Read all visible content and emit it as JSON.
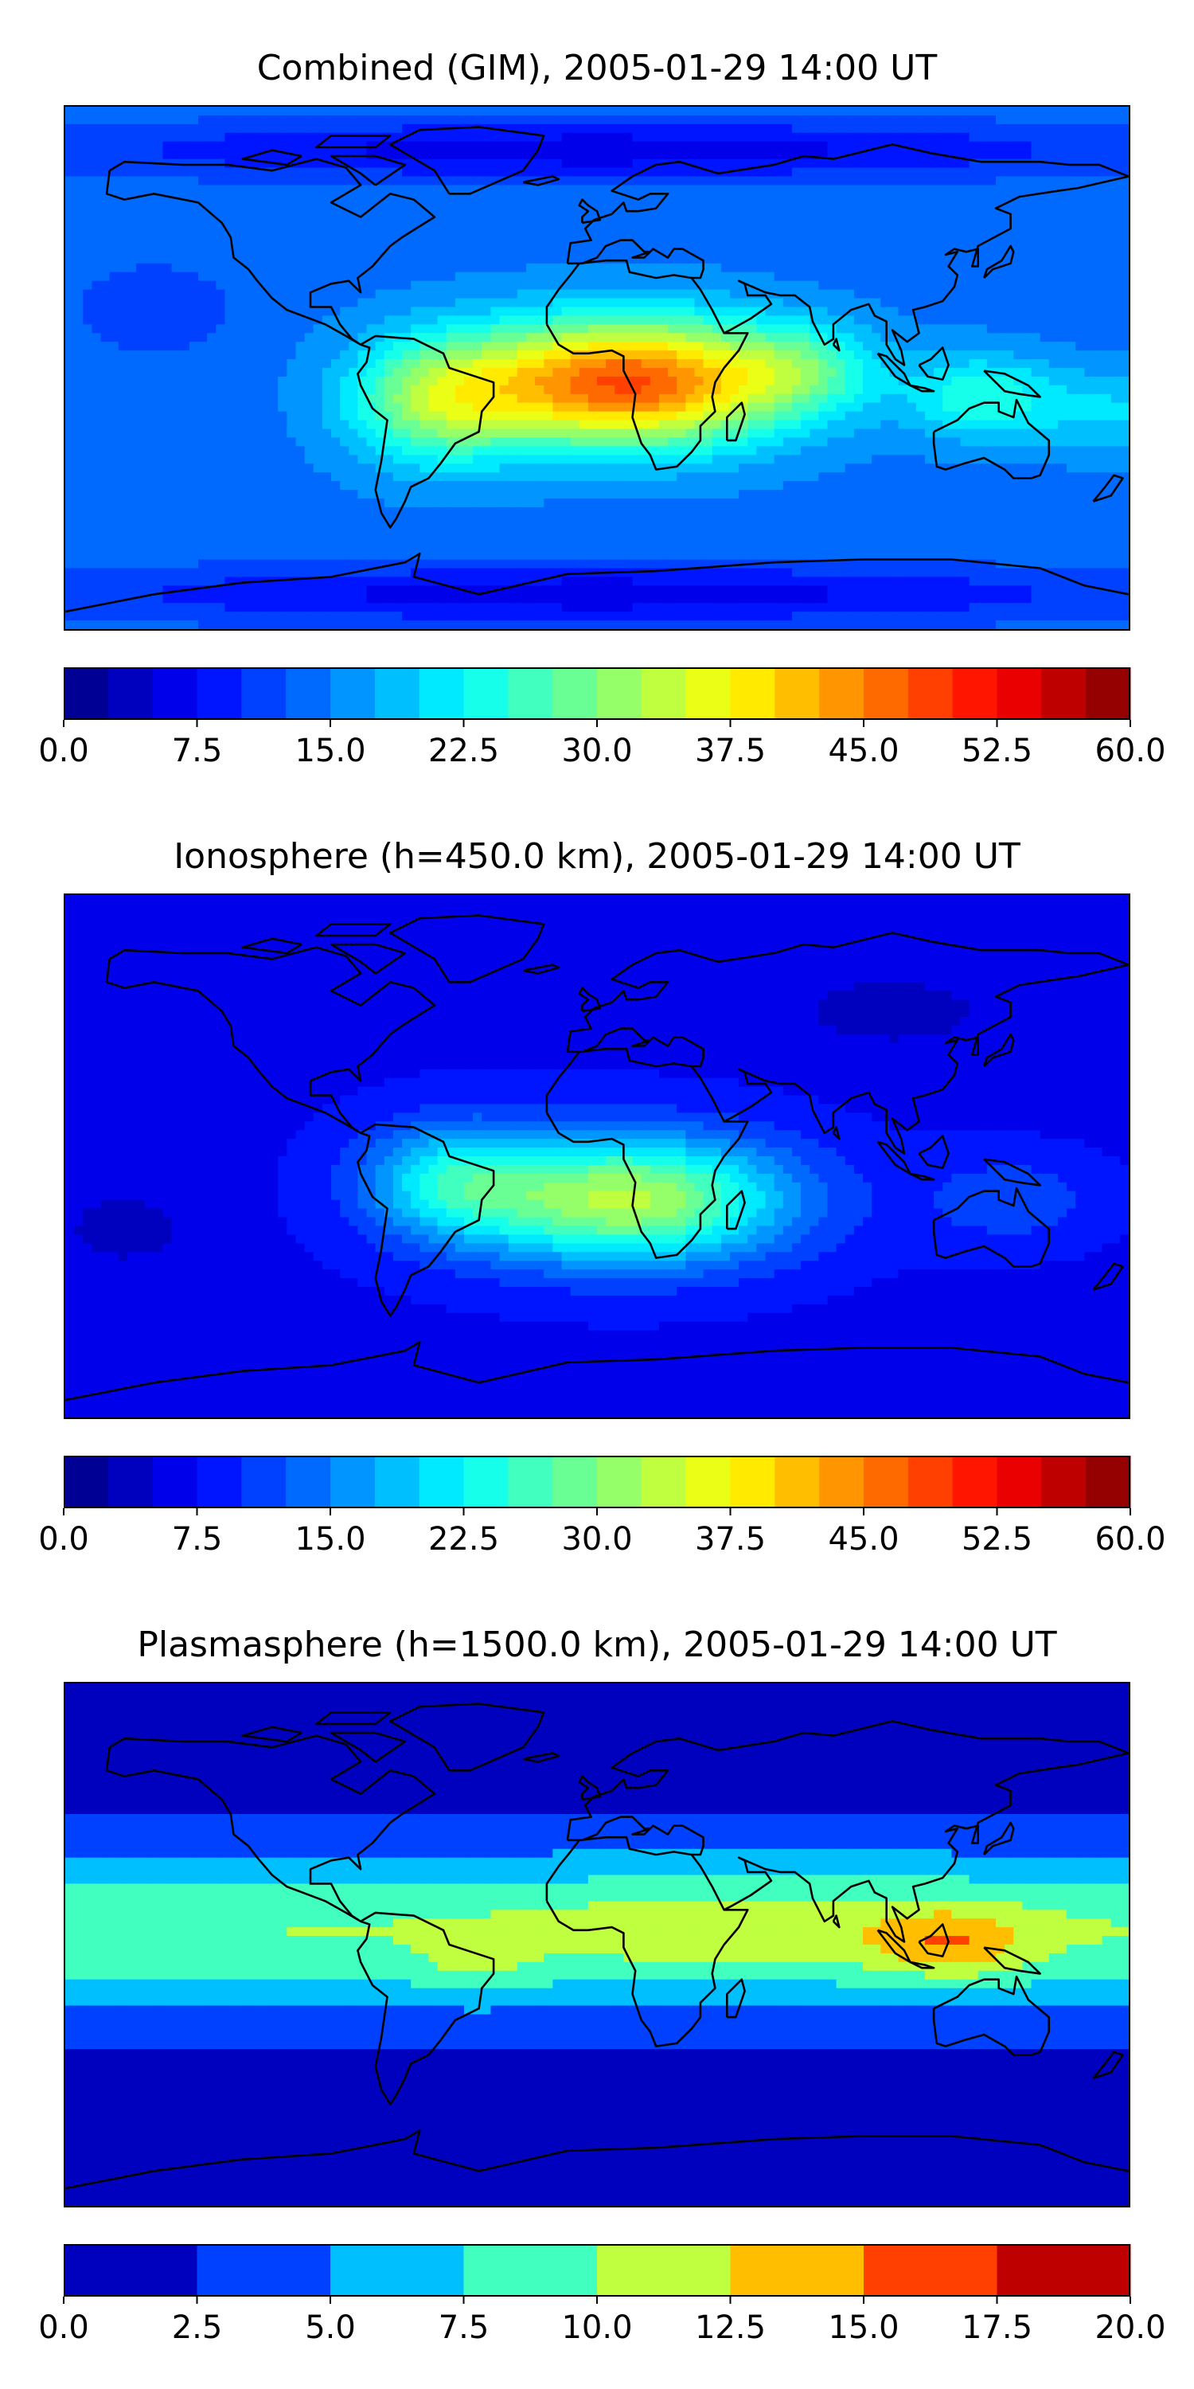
{
  "chart_data": [
    {
      "type": "heatmap",
      "title": "Combined (GIM), 2005-01-29 14:00 UT",
      "colorbar": {
        "range": [
          0,
          60
        ],
        "levels": 24,
        "ticks": [
          "0.0",
          "7.5",
          "15.0",
          "22.5",
          "30.0",
          "37.5",
          "45.0",
          "52.5",
          "60.0"
        ]
      },
      "field": {
        "background": 14,
        "blobs": [
          {
            "lon": 10,
            "lat": -5,
            "a": 34,
            "sx": 55,
            "sy": 22
          },
          {
            "lon": -55,
            "lat": -12,
            "a": 14,
            "sx": 30,
            "sy": 22
          },
          {
            "lon": 70,
            "lat": 0,
            "a": 8,
            "sx": 25,
            "sy": 15
          },
          {
            "lon": 130,
            "lat": -10,
            "a": 10,
            "sx": 25,
            "sy": 15
          },
          {
            "lon": 175,
            "lat": -15,
            "a": 6,
            "sx": 30,
            "sy": 15
          },
          {
            "lon": 0,
            "lat": 75,
            "a": -8,
            "sx": 180,
            "sy": 10
          },
          {
            "lon": 0,
            "lat": -78,
            "a": -8,
            "sx": 180,
            "sy": 10
          },
          {
            "lon": -150,
            "lat": 20,
            "a": -4,
            "sx": 25,
            "sy": 15
          }
        ]
      }
    },
    {
      "type": "heatmap",
      "title": "Ionosphere  (h=450.0 km), 2005-01-29 14:00 UT",
      "colorbar": {
        "range": [
          0,
          60
        ],
        "levels": 24,
        "ticks": [
          "0.0",
          "7.5",
          "15.0",
          "22.5",
          "30.0",
          "37.5",
          "45.0",
          "52.5",
          "60.0"
        ]
      },
      "field": {
        "background": 7,
        "blobs": [
          {
            "lon": 10,
            "lat": -15,
            "a": 26,
            "sx": 55,
            "sy": 22
          },
          {
            "lon": -50,
            "lat": -8,
            "a": 12,
            "sx": 30,
            "sy": 20
          },
          {
            "lon": 140,
            "lat": -15,
            "a": 5,
            "sx": 30,
            "sy": 15
          },
          {
            "lon": -160,
            "lat": -25,
            "a": -3,
            "sx": 25,
            "sy": 15
          },
          {
            "lon": 100,
            "lat": 50,
            "a": -3,
            "sx": 40,
            "sy": 15
          }
        ]
      }
    },
    {
      "type": "heatmap",
      "title": "Plasmasphere (h=1500.0 km), 2005-01-29 14:00 UT",
      "colorbar": {
        "range": [
          0,
          20
        ],
        "levels": 8,
        "ticks": [
          "0.0",
          "2.5",
          "5.0",
          "7.5",
          "10.0",
          "12.5",
          "15.0",
          "17.5",
          "20.0"
        ]
      },
      "field": {
        "background": 1.5,
        "band": {
          "lat": 5,
          "width": 28,
          "a": 8.5
        },
        "blobs": [
          {
            "lon": 120,
            "lat": 0,
            "a": 5,
            "sx": 25,
            "sy": 12
          },
          {
            "lon": 50,
            "lat": 5,
            "a": 2.2,
            "sx": 60,
            "sy": 15
          },
          {
            "lon": -40,
            "lat": -8,
            "a": 2.2,
            "sx": 20,
            "sy": 10
          }
        ]
      }
    }
  ]
}
